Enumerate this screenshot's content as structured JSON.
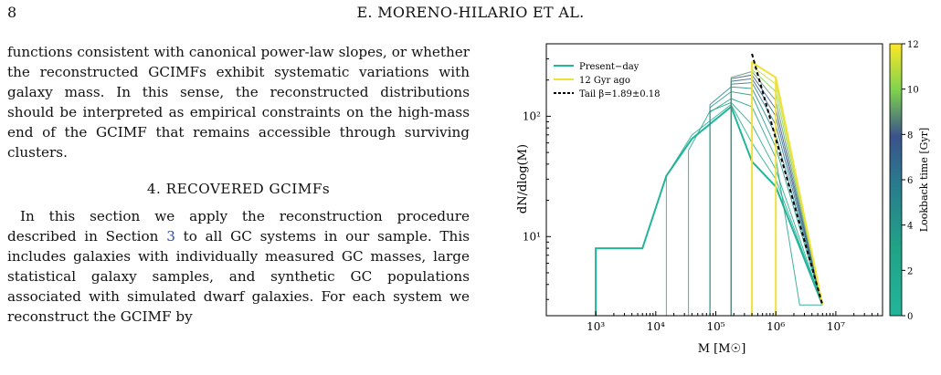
{
  "header": {
    "page_number": "8",
    "running_title": "E. MORENO-HILARIO ET AL."
  },
  "text": {
    "paragraph1": "functions consistent with canonical power-law slopes, or whether the reconstructed GCIMFs exhibit systematic variations with galaxy mass. In this sense, the reconstructed distributions should be interpreted as empirical constraints on the high-mass end of the GCIMF that remains accessible through surviving clusters.",
    "section_heading": "4. RECOVERED GCIMFs",
    "paragraph2_before": "In this section we apply the reconstruction procedure described in Section ",
    "paragraph2_ref": "3",
    "paragraph2_after": " to all GC systems in our sample. This includes galaxies with individually measured GC masses, large statistical galaxy samples, and synthetic GC populations associated with simulated dwarf galaxies. For each system we reconstruct the GCIMF by"
  },
  "chart_data": {
    "type": "line",
    "x_scale": "log",
    "y_scale": "log",
    "xlabel": "M [M☉]",
    "ylabel": "dN/dlog(M)",
    "xlim": [
      150,
      60000000
    ],
    "ylim": [
      2.2,
      400
    ],
    "x_ticks": [
      "10³",
      "10⁴",
      "10⁵",
      "10⁶",
      "10⁷"
    ],
    "y_ticks": [
      "10¹",
      "10²"
    ],
    "legend": {
      "position": "top-left",
      "entries": [
        {
          "label": "Present−day",
          "color": "#22b59a",
          "style": "solid"
        },
        {
          "label": "12 Gyr ago",
          "color": "#f0e03a",
          "style": "solid"
        },
        {
          "label": "Tail β=1.89±0.18",
          "color": "#000000",
          "style": "dashed"
        }
      ]
    },
    "colorbar": {
      "label": "Lookback time [Gyr]",
      "range": [
        0,
        12
      ],
      "ticks": [
        "0",
        "2",
        "4",
        "6",
        "8",
        "10",
        "12"
      ]
    },
    "series": [
      {
        "name": "Present−day",
        "lookback": 0,
        "x": [
          1000,
          1000,
          6000,
          15000,
          40000,
          180000,
          400000,
          1000000,
          6000000
        ],
        "y": [
          2.2,
          8,
          8,
          32,
          65,
          120,
          42,
          26,
          2.7
        ]
      },
      {
        "lookback": 1,
        "x": [
          15000,
          15000,
          40000,
          180000,
          400000,
          1000000,
          6000000
        ],
        "y": [
          2.2,
          32,
          70,
          125,
          60,
          30,
          2.7
        ]
      },
      {
        "lookback": 2,
        "x": [
          35000,
          35000,
          80000,
          180000,
          400000,
          1000000,
          6000000
        ],
        "y": [
          2.2,
          52,
          110,
          130,
          85,
          36,
          2.7
        ]
      },
      {
        "lookback": 3,
        "x": [
          80000,
          80000,
          180000,
          400000,
          1000000,
          2500000,
          6000000
        ],
        "y": [
          2.2,
          108,
          140,
          120,
          45,
          2.7,
          2.7
        ]
      },
      {
        "lookback": 4,
        "x": [
          80000,
          80000,
          180000,
          400000,
          1000000,
          6000000
        ],
        "y": [
          2.2,
          118,
          160,
          150,
          55,
          2.7
        ]
      },
      {
        "lookback": 5,
        "x": [
          80000,
          80000,
          180000,
          400000,
          1000000,
          6000000
        ],
        "y": [
          2.2,
          125,
          175,
          170,
          70,
          2.7
        ]
      },
      {
        "lookback": 6,
        "x": [
          180000,
          180000,
          400000,
          1000000,
          6000000
        ],
        "y": [
          2.2,
          185,
          190,
          85,
          2.7
        ]
      },
      {
        "lookback": 7,
        "x": [
          180000,
          180000,
          400000,
          1000000,
          6000000
        ],
        "y": [
          2.2,
          195,
          205,
          100,
          2.7
        ]
      },
      {
        "lookback": 8,
        "x": [
          180000,
          180000,
          400000,
          1000000,
          6000000
        ],
        "y": [
          2.2,
          205,
          220,
          115,
          2.7
        ]
      },
      {
        "lookback": 9,
        "x": [
          180000,
          180000,
          400000,
          1000000,
          6000000
        ],
        "y": [
          2.2,
          210,
          235,
          135,
          2.7
        ]
      },
      {
        "lookback": 10,
        "x": [
          400000,
          400000,
          1000000,
          6000000
        ],
        "y": [
          2.2,
          245,
          160,
          2.7
        ]
      },
      {
        "lookback": 11,
        "x": [
          400000,
          400000,
          1000000,
          6000000
        ],
        "y": [
          2.2,
          260,
          185,
          2.7
        ]
      },
      {
        "name": "12 Gyr ago",
        "lookback": 12,
        "x": [
          400000,
          400000,
          1000000,
          1000000,
          1000000,
          6000000
        ],
        "y": [
          2.2,
          280,
          210,
          2.2,
          210,
          2.7
        ]
      }
    ],
    "tail_fit": {
      "name": "Tail β=1.89±0.18",
      "x": [
        400000,
        6000000
      ],
      "y": [
        330,
        2.7
      ]
    }
  }
}
